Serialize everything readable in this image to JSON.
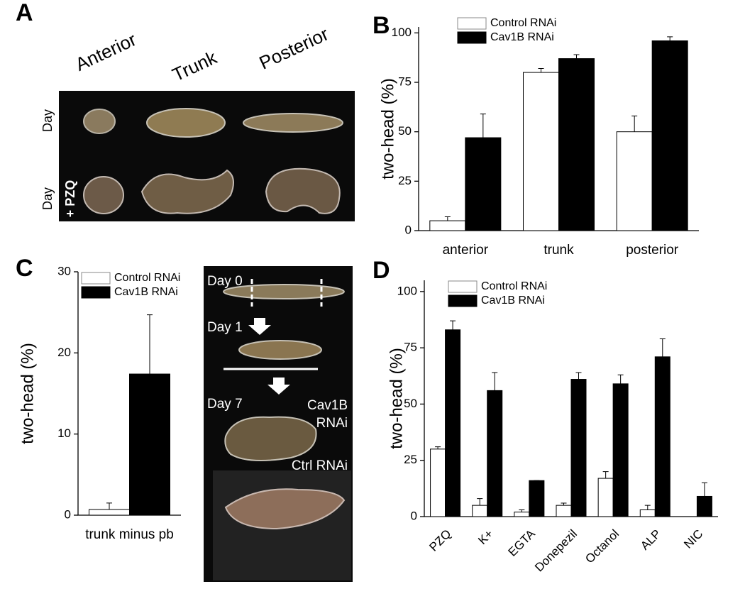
{
  "panels": [
    "A",
    "B",
    "C",
    "D"
  ],
  "photo_a": {
    "columns": [
      "Anterior",
      "Trunk",
      "Posterior"
    ],
    "rows": [
      "Day",
      "Day"
    ],
    "treatment": "+ PZQ"
  },
  "photo_c": {
    "days": [
      "Day 0",
      "Day 1",
      "Day 7"
    ],
    "labels": [
      "Cav1B",
      "RNAi",
      "Ctrl RNAi"
    ]
  },
  "chart_data": [
    {
      "type": "bar",
      "ylabel": "two-head (%)",
      "categories": [
        "anterior",
        "trunk",
        "posterior"
      ],
      "series": [
        {
          "name": "Control RNAi",
          "color": "#ffffff",
          "values": [
            5,
            80,
            50
          ],
          "errors": [
            2,
            2,
            8
          ]
        },
        {
          "name": "Cav1B RNAi",
          "color": "#000000",
          "values": [
            47,
            87,
            96
          ],
          "errors": [
            12,
            2,
            2
          ]
        }
      ],
      "ylim": [
        0,
        103
      ],
      "yticks": [
        0,
        25,
        50,
        75,
        100
      ],
      "legend": "upper left"
    },
    {
      "type": "bar",
      "ylabel": "two-head (%)",
      "categories": [
        "trunk minus pb"
      ],
      "series": [
        {
          "name": "Control RNAi",
          "color": "#ffffff",
          "values": [
            0.7
          ],
          "errors": [
            0.8
          ]
        },
        {
          "name": "Cav1B RNAi",
          "color": "#000000",
          "values": [
            17.4
          ],
          "errors": [
            7.3
          ]
        }
      ],
      "ylim": [
        0,
        30
      ],
      "yticks": [
        0,
        10,
        20,
        30
      ],
      "legend": "upper left"
    },
    {
      "type": "bar",
      "ylabel": "two-head (%)",
      "categories": [
        "PZQ",
        "K+",
        "EGTA",
        "Donepezil",
        "Octanol",
        "ALP",
        "NIC"
      ],
      "series": [
        {
          "name": "Control RNAi",
          "color": "#ffffff",
          "values": [
            30,
            5,
            2,
            5,
            17,
            3,
            0
          ],
          "errors": [
            1,
            3,
            1,
            1,
            3,
            2,
            0
          ]
        },
        {
          "name": "Cav1B RNAi",
          "color": "#000000",
          "values": [
            83,
            56,
            16,
            61,
            59,
            71,
            9
          ],
          "errors": [
            4,
            8,
            0,
            3,
            4,
            8,
            6
          ]
        }
      ],
      "ylim": [
        0,
        105
      ],
      "yticks": [
        0,
        25,
        50,
        75,
        100
      ],
      "legend": "upper left"
    }
  ]
}
